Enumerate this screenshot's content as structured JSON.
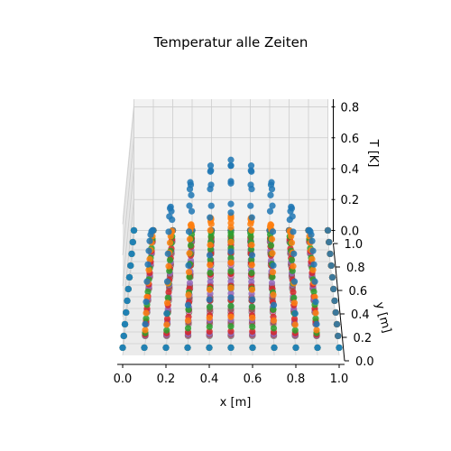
{
  "chart_data": {
    "type": "scatter",
    "projection": "3d",
    "title": "Temperatur alle Zeiten",
    "xlabel": "x [m]",
    "ylabel": "y [m]",
    "zlabel": "T [K]",
    "xlim": [
      0.0,
      1.0
    ],
    "ylim": [
      0.0,
      1.0
    ],
    "zlim": [
      -0.05,
      0.85
    ],
    "x_ticks": [
      "0.0",
      "0.2",
      "0.4",
      "0.6",
      "0.8",
      "1.0"
    ],
    "y_ticks": [
      "0.0",
      "0.2",
      "0.4",
      "0.6",
      "0.8",
      "1.0"
    ],
    "z_ticks": [
      "0.0",
      "0.2",
      "0.4",
      "0.6",
      "0.8"
    ],
    "grid": true,
    "grid_x": [
      0.0,
      0.1,
      0.2,
      0.3,
      0.4,
      0.5,
      0.6,
      0.7,
      0.8,
      0.9,
      1.0
    ],
    "grid_y": [
      0.1,
      0.2,
      0.3,
      0.4,
      0.5,
      0.6,
      0.7,
      0.8,
      0.9
    ],
    "series": [
      {
        "color": "#1f77b4",
        "peak": 0.8
      },
      {
        "color": "#ff7f0e",
        "peak": 0.4
      },
      {
        "color": "#2ca02c",
        "peak": 0.2
      },
      {
        "color": "#d62728",
        "peak": 0.1
      },
      {
        "color": "#9467bd",
        "peak": 0.05
      },
      {
        "color": "#8c564b",
        "peak": 0.025
      },
      {
        "color": "#e377c2",
        "peak": 0.012
      },
      {
        "color": "#7f7f7f",
        "peak": 0.006
      },
      {
        "color": "#bcbd22",
        "peak": 0.003
      },
      {
        "color": "#17becf",
        "peak": 0.0015
      },
      {
        "color": "#1f77b4",
        "peak": 0.0008
      }
    ]
  }
}
